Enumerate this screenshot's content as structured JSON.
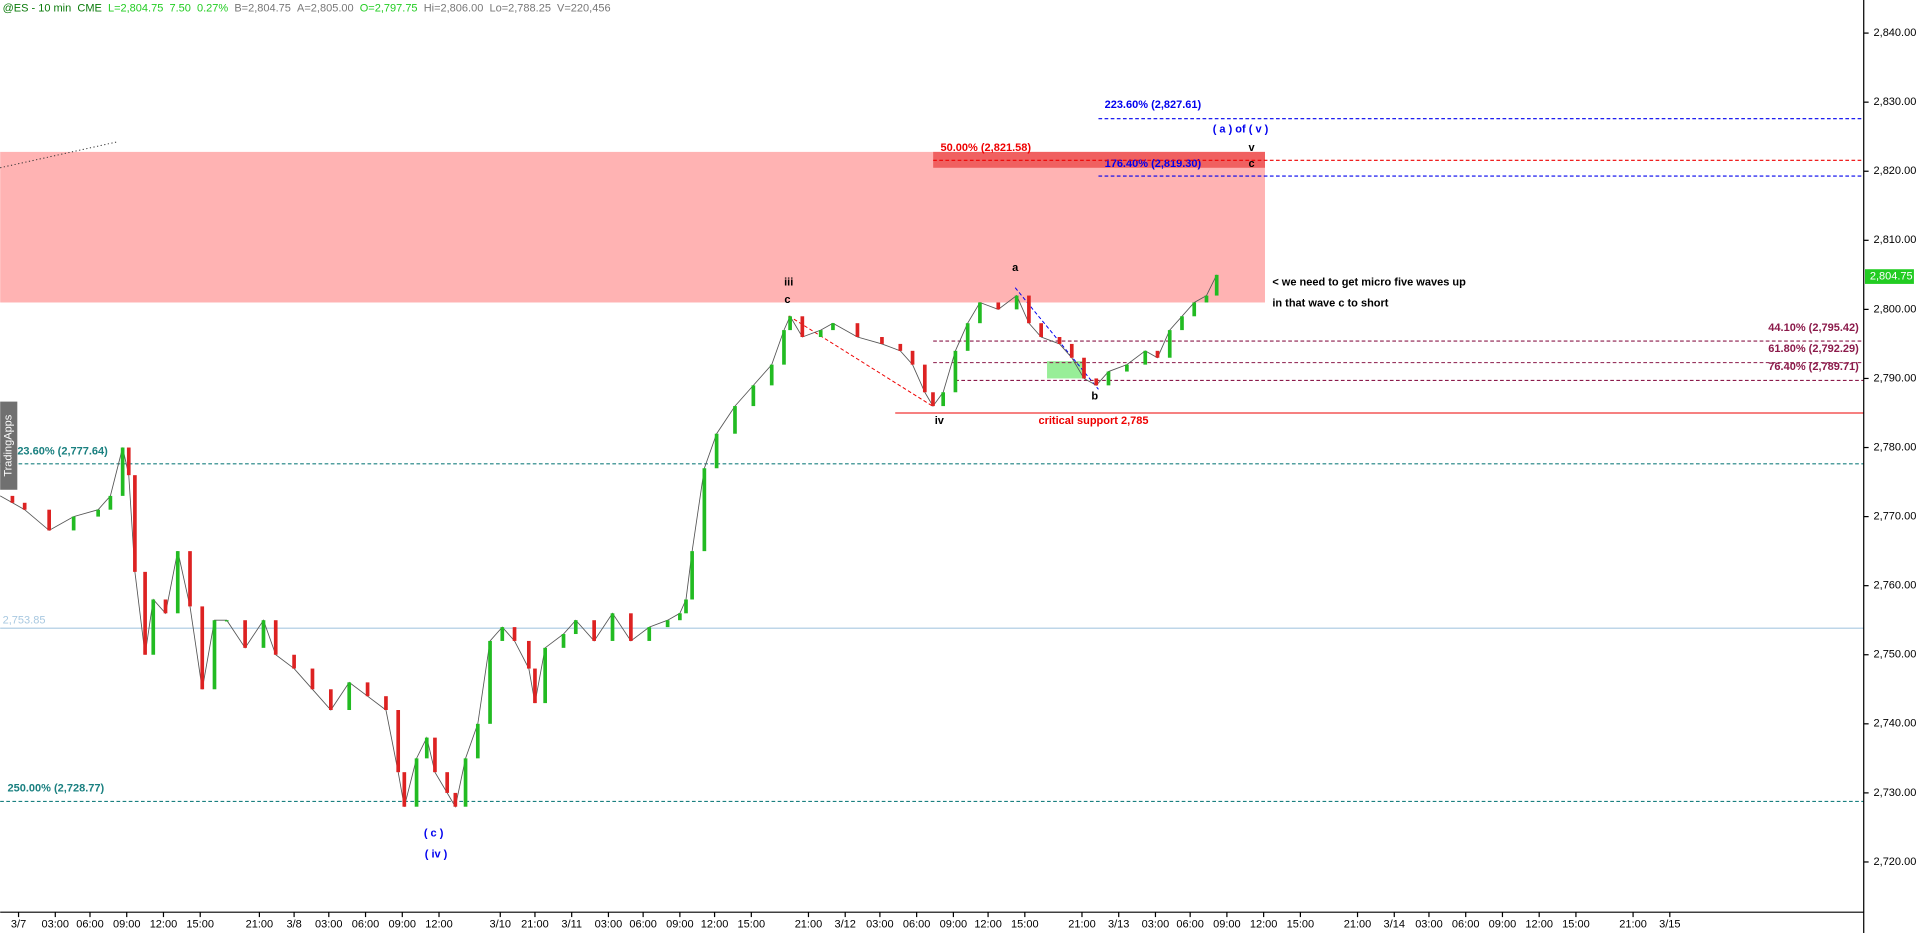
{
  "chart_data": {
    "type": "line",
    "header": {
      "symbol": "@ES - 10 min",
      "exchange": "CME",
      "last": "L=2,804.75",
      "change": "7.50",
      "pct": "0.27%",
      "bid": "B=2,804.75",
      "ask": "A=2,805.00",
      "open": "O=2,797.75",
      "high": "Hi=2,806.00",
      "low": "Lo=2,788.25",
      "volume": "V=220,456"
    },
    "side_tab": "TradingApps",
    "ylim": [
      2712.73,
      2844.79
    ],
    "yticks": [
      {
        "value": 2720,
        "label": "2,720.00"
      },
      {
        "value": 2730,
        "label": "2,730.00"
      },
      {
        "value": 2740,
        "label": "2,740.00"
      },
      {
        "value": 2750,
        "label": "2,750.00"
      },
      {
        "value": 2760,
        "label": "2,760.00"
      },
      {
        "value": 2770,
        "label": "2,770.00"
      },
      {
        "value": 2780,
        "label": "2,780.00"
      },
      {
        "value": 2790,
        "label": "2,790.00"
      },
      {
        "value": 2800,
        "label": "2,800.00"
      },
      {
        "value": 2810,
        "label": "2,810.00"
      },
      {
        "value": 2820,
        "label": "2,820.00"
      },
      {
        "value": 2830,
        "label": "2,830.00"
      },
      {
        "value": 2840,
        "label": "2,840.00"
      }
    ],
    "xlim": [
      0,
      913
    ],
    "xticks": [
      {
        "value": 9,
        "label": "3/7"
      },
      {
        "value": 27,
        "label": "03:00"
      },
      {
        "value": 44,
        "label": "06:00"
      },
      {
        "value": 62,
        "label": "09:00"
      },
      {
        "value": 80,
        "label": "12:00"
      },
      {
        "value": 98,
        "label": "15:00"
      },
      {
        "value": 127,
        "label": "21:00"
      },
      {
        "value": 144,
        "label": "3/8"
      },
      {
        "value": 161,
        "label": "03:00"
      },
      {
        "value": 179,
        "label": "06:00"
      },
      {
        "value": 197,
        "label": "09:00"
      },
      {
        "value": 215,
        "label": "12:00"
      },
      {
        "value": 245,
        "label": "3/10"
      },
      {
        "value": 262,
        "label": "21:00"
      },
      {
        "value": 280,
        "label": "3/11"
      },
      {
        "value": 298,
        "label": "03:00"
      },
      {
        "value": 315,
        "label": "06:00"
      },
      {
        "value": 333,
        "label": "09:00"
      },
      {
        "value": 350,
        "label": "12:00"
      },
      {
        "value": 368,
        "label": "15:00"
      },
      {
        "value": 396,
        "label": "21:00"
      },
      {
        "value": 414,
        "label": "3/12"
      },
      {
        "value": 431,
        "label": "03:00"
      },
      {
        "value": 449,
        "label": "06:00"
      },
      {
        "value": 467,
        "label": "09:00"
      },
      {
        "value": 484,
        "label": "12:00"
      },
      {
        "value": 502,
        "label": "15:00"
      },
      {
        "value": 530,
        "label": "21:00"
      },
      {
        "value": 548,
        "label": "3/13"
      },
      {
        "value": 566,
        "label": "03:00"
      },
      {
        "value": 583,
        "label": "06:00"
      },
      {
        "value": 601,
        "label": "09:00"
      },
      {
        "value": 619,
        "label": "12:00"
      },
      {
        "value": 637,
        "label": "15:00"
      },
      {
        "value": 665,
        "label": "21:00"
      },
      {
        "value": 683,
        "label": "3/14"
      },
      {
        "value": 700,
        "label": "03:00"
      },
      {
        "value": 718,
        "label": "06:00"
      },
      {
        "value": 736,
        "label": "09:00"
      },
      {
        "value": 754,
        "label": "12:00"
      },
      {
        "value": 772,
        "label": "15:00"
      },
      {
        "value": 800,
        "label": "21:00"
      },
      {
        "value": 818,
        "label": "3/15"
      }
    ],
    "series": [
      {
        "up_color": "#22bb22",
        "down_color": "#dd2222",
        "color": "#555555",
        "x": [
          0,
          6,
          12,
          24,
          36,
          48,
          54,
          60,
          63,
          66,
          71,
          75,
          81,
          87,
          93,
          99,
          105,
          111,
          120,
          129,
          135,
          144,
          153,
          162,
          171,
          180,
          189,
          195,
          198,
          204,
          209,
          213,
          219,
          223,
          228,
          234,
          240,
          246,
          252,
          259,
          262,
          267,
          276,
          282,
          291,
          300,
          309,
          318,
          327,
          333,
          336,
          339,
          345,
          351,
          360,
          369,
          378,
          384,
          387,
          393,
          402,
          408,
          420,
          432,
          441,
          447,
          453,
          457,
          462,
          468,
          474,
          480,
          489,
          498,
          504,
          510,
          519,
          525,
          531,
          537,
          543,
          552,
          561,
          567,
          573,
          579,
          585,
          591,
          596
        ],
        "values": [
          2773,
          2772,
          2771,
          2768,
          2770,
          2771,
          2773,
          2780,
          2776,
          2762,
          2750,
          2758,
          2756,
          2765,
          2757,
          2745,
          2755,
          2755,
          2751,
          2755,
          2750,
          2748,
          2745,
          2742,
          2746,
          2744,
          2742,
          2733,
          2728,
          2735,
          2738,
          2733,
          2730,
          2728,
          2735,
          2740,
          2752,
          2754,
          2752,
          2748,
          2743,
          2751,
          2753,
          2755,
          2752,
          2756,
          2752,
          2754,
          2755,
          2756,
          2758,
          2765,
          2777,
          2782,
          2786,
          2789,
          2792,
          2797,
          2799,
          2796,
          2797,
          2798,
          2796,
          2795,
          2794,
          2792,
          2788,
          2786,
          2788,
          2794,
          2798,
          2801,
          2800,
          2802,
          2798,
          2796,
          2795,
          2793,
          2790,
          2789,
          2791,
          2792,
          2794,
          2793,
          2797,
          2799,
          2801,
          2802,
          2805
        ]
      }
    ],
    "last_price": {
      "value": 2804.75,
      "label": "2,804.75",
      "color": "#22cc22"
    },
    "zones": [
      {
        "range": [
          2801.0,
          2822.8
        ],
        "color": "#ffb3b3"
      },
      {
        "range": [
          2820.5,
          2822.8
        ],
        "color": "#f06060"
      },
      {
        "range": [
          2790.0,
          2792.5
        ],
        "color": "#98ee98"
      }
    ],
    "levels": [
      {
        "label": "223.60% (2,827.61)",
        "value": 2827.61,
        "color": "#0000ee",
        "style": "dashed"
      },
      {
        "label": "176.40% (2,819.30)",
        "value": 2819.3,
        "color": "#0000ee",
        "style": "dashed"
      },
      {
        "label": "50.00% (2,821.58)",
        "value": 2821.58,
        "color": "#ee0000",
        "style": "dashed"
      },
      {
        "label": "44.10% (2,795.42)",
        "value": 2795.42,
        "color": "#8b1a4a",
        "style": "dashed"
      },
      {
        "label": "61.80% (2,792.29)",
        "value": 2792.29,
        "color": "#8b1a4a",
        "style": "dashed"
      },
      {
        "label": "76.40% (2,789.71)",
        "value": 2789.71,
        "color": "#8b1a4a",
        "style": "dashed"
      },
      {
        "label": "23.60% (2,777.64)",
        "value": 2777.64,
        "color": "#1a8080",
        "style": "dashed"
      },
      {
        "label": "250.00% (2,728.77)",
        "value": 2728.77,
        "color": "#1a8080",
        "style": "dashed"
      },
      {
        "label": "critical support 2,785",
        "value": 2785,
        "color": "#ee0000",
        "style": "solid"
      },
      {
        "label": "2,753.85",
        "value": 2753.85,
        "color": "#a8c8e0",
        "style": "solid"
      }
    ],
    "waves": [
      "iii",
      "c",
      "iv",
      "a",
      "b",
      "v",
      "c",
      "( a ) of ( v )",
      "( c )",
      "( iv )"
    ],
    "annotations": [
      "< we need to get micro five waves up",
      "in that wave c to short"
    ]
  }
}
